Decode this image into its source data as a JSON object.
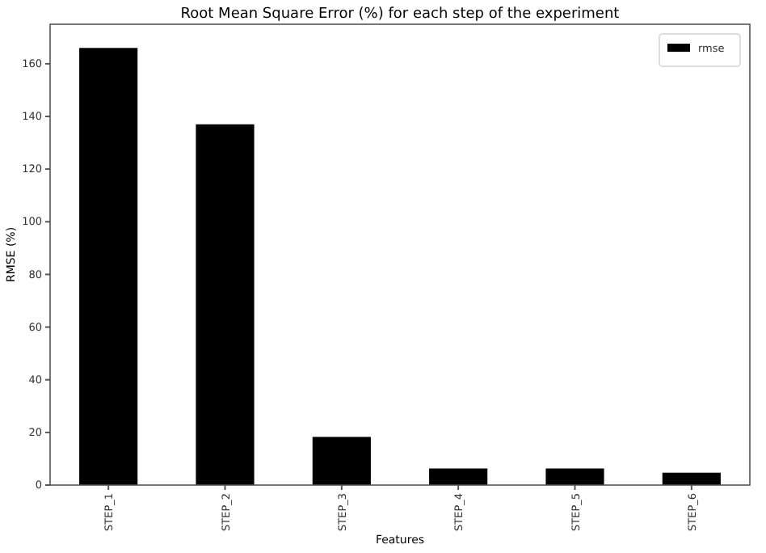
{
  "chart_data": {
    "type": "bar",
    "title": "Root Mean Square Error (%) for each step of the experiment",
    "xlabel": "Features",
    "ylabel": "RMSE (%)",
    "categories": [
      "STEP_1",
      "STEP_2",
      "STEP_3",
      "STEP_4",
      "STEP_5",
      "STEP_6"
    ],
    "series": [
      {
        "name": "rmse",
        "color": "#000000",
        "values": [
          166,
          137,
          18.3,
          6.3,
          6.3,
          4.7
        ]
      }
    ],
    "ylim": [
      0,
      175
    ],
    "yticks": [
      0,
      20,
      40,
      60,
      80,
      100,
      120,
      140,
      160
    ],
    "legend": "top right",
    "grid": false
  }
}
